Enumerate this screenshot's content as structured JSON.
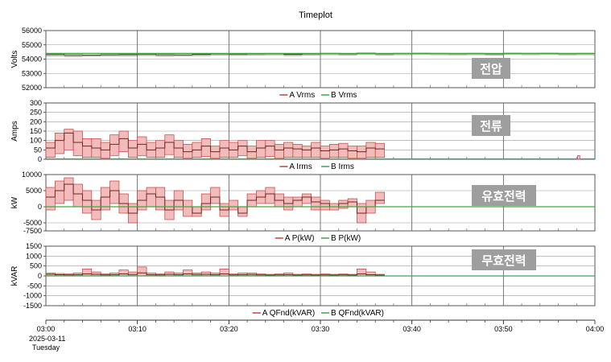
{
  "title": "Timeplot",
  "x_axis": {
    "ticks": [
      "03:00",
      "03:10",
      "03:20",
      "03:30",
      "03:40",
      "03:50",
      "04:00"
    ],
    "date": "2025-03-11",
    "weekday": "Tuesday"
  },
  "colors": {
    "a_series": "#c0403a",
    "a_fill": "#f2bcbc",
    "b_series": "#3aa848",
    "tag_bg": "#9e9e9e",
    "grid": "#9a9a9a"
  },
  "chart_data": [
    {
      "type": "line",
      "ylabel": "Volts",
      "ylim": [
        52000,
        56000
      ],
      "yticks": [
        "56000",
        "55000",
        "54000",
        "53000",
        "52000"
      ],
      "tag": "전압",
      "legend": [
        "A Vrms",
        "B Vrms"
      ],
      "xrange_minutes": [
        0,
        60
      ],
      "series": [
        {
          "name": "A Vrms",
          "x": [
            0,
            2,
            4,
            6,
            8,
            10,
            12,
            14,
            16,
            18,
            20,
            22,
            24,
            26,
            28,
            30,
            32,
            34,
            36,
            38,
            40,
            42,
            44,
            46,
            48,
            50,
            52,
            54,
            56,
            58,
            60
          ],
          "y": [
            54350,
            54300,
            54280,
            54320,
            54330,
            54360,
            54320,
            54300,
            54340,
            54380,
            54360,
            54380,
            54390,
            54340,
            54380,
            54400,
            54380,
            54420,
            54380,
            54400,
            54410,
            54400,
            54390,
            54400,
            54380,
            54410,
            54400,
            54410,
            54390,
            54400,
            54400
          ],
          "band": [
            54200,
            54150,
            54180,
            54200,
            54200,
            54230,
            54180,
            54200,
            54220,
            54260,
            54240,
            54260,
            54270,
            54220,
            54260,
            54280,
            54260,
            54300,
            54260,
            54280,
            54300,
            54280,
            54270,
            54280,
            54260,
            54300,
            54280,
            54300,
            54270,
            54280,
            54280
          ]
        },
        {
          "name": "B Vrms",
          "x": [
            0,
            60
          ],
          "y": [
            54400,
            54400
          ]
        }
      ]
    },
    {
      "type": "line",
      "ylabel": "Amps",
      "ylim": [
        0,
        300
      ],
      "yticks": [
        "300",
        "250",
        "200",
        "150",
        "100",
        "50",
        "0"
      ],
      "tag": "전류",
      "legend": [
        "A Irms",
        "B Irms"
      ],
      "xrange_minutes": [
        0,
        60
      ],
      "series": [
        {
          "name": "A Irms",
          "x": [
            0,
            1,
            2,
            3,
            4,
            5,
            6,
            7,
            8,
            9,
            10,
            11,
            12,
            13,
            14,
            15,
            16,
            17,
            18,
            19,
            20,
            21,
            22,
            23,
            24,
            25,
            26,
            27,
            28,
            29,
            30,
            31,
            32,
            33,
            34,
            35,
            36
          ],
          "y": [
            60,
            100,
            140,
            90,
            70,
            60,
            50,
            80,
            110,
            60,
            80,
            50,
            60,
            90,
            60,
            40,
            50,
            70,
            40,
            60,
            50,
            70,
            40,
            60,
            70,
            50,
            60,
            55,
            50,
            60,
            45,
            50,
            55,
            45,
            40,
            60,
            55
          ],
          "band": [
            10,
            30,
            50,
            20,
            10,
            10,
            5,
            20,
            40,
            10,
            20,
            10,
            10,
            25,
            10,
            5,
            10,
            15,
            5,
            10,
            10,
            20,
            5,
            10,
            15,
            5,
            10,
            10,
            10,
            10,
            5,
            10,
            10,
            5,
            5,
            10,
            10
          ],
          "top": [
            90,
            140,
            160,
            150,
            110,
            110,
            90,
            130,
            150,
            100,
            120,
            90,
            100,
            130,
            100,
            80,
            90,
            110,
            70,
            100,
            90,
            100,
            70,
            100,
            100,
            80,
            90,
            80,
            70,
            90,
            70,
            80,
            85,
            70,
            70,
            90,
            85
          ]
        },
        {
          "name": "B Irms",
          "x": [
            0,
            60
          ],
          "y": [
            2,
            2
          ]
        },
        {
          "name": "spike",
          "x": [
            58.1,
            58.3
          ],
          "y": [
            20,
            0
          ]
        }
      ]
    },
    {
      "type": "line",
      "ylabel": "kW",
      "ylim": [
        -7500,
        10000
      ],
      "yticks": [
        "10000",
        "5000",
        "0",
        "-5000",
        "-7500"
      ],
      "tag": "유효전력",
      "legend": [
        "A P(kW)",
        "B P(kW)"
      ],
      "xrange_minutes": [
        0,
        60
      ],
      "series": [
        {
          "name": "A P(kW)",
          "x": [
            0,
            1,
            2,
            3,
            4,
            5,
            6,
            7,
            8,
            9,
            10,
            11,
            12,
            13,
            14,
            15,
            16,
            17,
            18,
            19,
            20,
            21,
            22,
            23,
            24,
            25,
            26,
            27,
            28,
            29,
            30,
            31,
            32,
            33,
            34,
            35,
            36
          ],
          "y": [
            3000,
            5000,
            7000,
            4000,
            2000,
            -1000,
            3000,
            5000,
            1000,
            -2000,
            2000,
            4000,
            3000,
            -1000,
            2000,
            0,
            -2000,
            1000,
            3000,
            -1000,
            0,
            -2000,
            2000,
            3000,
            4000,
            2000,
            1000,
            2000,
            3000,
            1500,
            1000,
            0,
            1000,
            1500,
            -2000,
            0,
            2000
          ],
          "band": [
            -1000,
            1000,
            2000,
            0,
            -2000,
            -4000,
            -1000,
            1000,
            -2000,
            -5000,
            -1000,
            0,
            -1000,
            -4000,
            -1000,
            -3000,
            -3000,
            -1000,
            1000,
            -3000,
            -1000,
            -3000,
            0,
            1000,
            1000,
            0,
            -1000,
            0,
            1000,
            -1000,
            -1000,
            -1000,
            -500,
            0,
            -5000,
            -2000,
            1000
          ],
          "top": [
            6000,
            8000,
            9000,
            7000,
            5000,
            2000,
            6000,
            8000,
            4000,
            1000,
            5000,
            6000,
            6000,
            2000,
            5000,
            2000,
            0,
            4000,
            6000,
            1000,
            2000,
            0,
            4000,
            5000,
            6000,
            4000,
            3000,
            3000,
            4000,
            3000,
            2000,
            1000,
            2000,
            2500,
            1000,
            2000,
            4500
          ]
        },
        {
          "name": "B P(kW)",
          "x": [
            0,
            60
          ],
          "y": [
            0,
            0
          ]
        }
      ]
    },
    {
      "type": "line",
      "ylabel": "kVAR",
      "ylim": [
        -1500,
        1500
      ],
      "yticks": [
        "1500",
        "1000",
        "500",
        "0",
        "-500",
        "-1000",
        "-1500"
      ],
      "tag": "무효전력",
      "legend": [
        "A QFnd(kVAR)",
        "B QFnd(kVAR)"
      ],
      "xrange_minutes": [
        0,
        60
      ],
      "series": [
        {
          "name": "A QFnd(kVAR)",
          "x": [
            0,
            1,
            2,
            3,
            4,
            5,
            6,
            7,
            8,
            9,
            10,
            11,
            12,
            13,
            14,
            15,
            16,
            17,
            18,
            19,
            20,
            21,
            22,
            23,
            24,
            25,
            26,
            27,
            28,
            29,
            30,
            31,
            32,
            33,
            34,
            35,
            36
          ],
          "y": [
            80,
            60,
            50,
            60,
            100,
            80,
            50,
            60,
            100,
            70,
            150,
            60,
            50,
            80,
            60,
            100,
            70,
            80,
            60,
            100,
            50,
            60,
            70,
            50,
            40,
            50,
            60,
            40,
            50,
            40,
            50,
            40,
            50,
            40,
            100,
            60,
            40
          ],
          "band": [
            0,
            0,
            0,
            0,
            0,
            0,
            0,
            0,
            0,
            0,
            0,
            0,
            0,
            0,
            0,
            0,
            0,
            0,
            0,
            0,
            0,
            0,
            0,
            0,
            0,
            0,
            0,
            0,
            0,
            0,
            0,
            0,
            0,
            0,
            0,
            0,
            0
          ],
          "top": [
            150,
            120,
            100,
            150,
            350,
            200,
            100,
            150,
            300,
            200,
            450,
            150,
            100,
            200,
            150,
            300,
            150,
            200,
            150,
            350,
            100,
            150,
            150,
            100,
            80,
            100,
            150,
            80,
            100,
            80,
            100,
            80,
            100,
            80,
            350,
            200,
            80
          ]
        },
        {
          "name": "B QFnd(kVAR)",
          "x": [
            0,
            60
          ],
          "y": [
            0,
            0
          ]
        }
      ]
    }
  ]
}
